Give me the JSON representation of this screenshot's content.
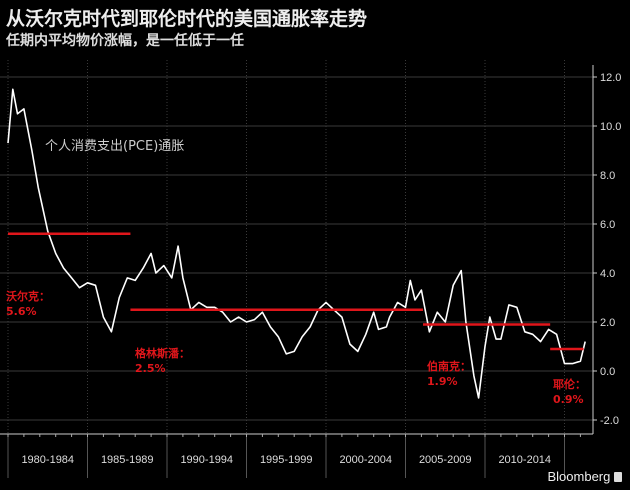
{
  "title": "从沃尔克时代到耶伦时代的美国通胀率走势",
  "subtitle": "任期内平均物价涨幅，是一任低于一任",
  "brand": "Bloomberg",
  "chart_data": {
    "type": "line",
    "title": "从沃尔克时代到耶伦时代的美国通胀率走势",
    "subtitle": "任期内平均物价涨幅，是一任低于一任",
    "series_label": "个人消费支出(PCE)通胀",
    "ylim": [
      -2,
      12
    ],
    "xlim": [
      1980,
      2017
    ],
    "yticks": [
      "12.0",
      "10.0",
      "8.0",
      "6.0",
      "4.0",
      "2.0",
      "0.0",
      "-2.0"
    ],
    "ytick_values": [
      12,
      10,
      8,
      6,
      4,
      2,
      0,
      -2
    ],
    "xtick_labels": [
      "1980-1984",
      "1985-1989",
      "1990-1994",
      "1995-1999",
      "2000-2004",
      "2005-2009",
      "2010-2014"
    ],
    "grid": true,
    "colors": {
      "line": "#ffffff",
      "average": "#e0161b",
      "label": "#e0161b",
      "grid": "#3a3a3a"
    },
    "series": [
      {
        "x": [
          1980.0,
          1980.3,
          1980.6,
          1981.0,
          1981.5,
          1981.9,
          1982.5,
          1983.0,
          1983.5,
          1984.0,
          1984.5,
          1985.0,
          1985.5,
          1986.0,
          1986.5,
          1987.0,
          1987.5,
          1988.0,
          1988.5,
          1989.0,
          1989.3,
          1989.8,
          1990.3,
          1990.7,
          1991.0,
          1991.5,
          1992.0,
          1992.5,
          1993.0,
          1993.5,
          1994.0,
          1994.5,
          1995.0,
          1995.5,
          1996.0,
          1996.5,
          1997.0,
          1997.5,
          1998.0,
          1998.5,
          1999.0,
          1999.5,
          2000.0,
          2000.5,
          2001.0,
          2001.5,
          2002.0,
          2002.5,
          2003.0,
          2003.3,
          2003.8,
          2004.0,
          2004.5,
          2005.0,
          2005.3,
          2005.6,
          2006.0,
          2006.5,
          2007.0,
          2007.5,
          2008.0,
          2008.5,
          2008.8,
          2009.3,
          2009.6,
          2010.0,
          2010.3,
          2010.7,
          2011.0,
          2011.5,
          2012.0,
          2012.5,
          2013.0,
          2013.5,
          2014.0,
          2014.5,
          2015.0,
          2015.5,
          2016.0,
          2016.3
        ],
        "y": [
          9.3,
          11.5,
          10.5,
          10.7,
          9.0,
          7.5,
          5.7,
          4.8,
          4.2,
          3.8,
          3.4,
          3.6,
          3.5,
          2.2,
          1.6,
          3.0,
          3.8,
          3.7,
          4.2,
          4.8,
          4.0,
          4.3,
          3.8,
          5.1,
          3.8,
          2.5,
          2.8,
          2.6,
          2.6,
          2.4,
          2.0,
          2.2,
          2.0,
          2.1,
          2.4,
          1.8,
          1.4,
          0.7,
          0.8,
          1.4,
          1.8,
          2.5,
          2.8,
          2.5,
          2.2,
          1.1,
          0.8,
          1.5,
          2.4,
          1.7,
          1.8,
          2.2,
          2.8,
          2.6,
          3.7,
          2.9,
          3.3,
          1.6,
          2.4,
          2.0,
          3.5,
          4.1,
          2.0,
          -0.2,
          -1.1,
          1.0,
          2.2,
          1.3,
          1.3,
          2.7,
          2.6,
          1.6,
          1.5,
          1.2,
          1.7,
          1.5,
          0.3,
          0.3,
          0.4,
          1.2
        ]
      }
    ],
    "averages": [
      {
        "name": "沃尔克：",
        "value": 5.6,
        "value_label": "5.6%",
        "start": 1980.0,
        "end": 1987.7
      },
      {
        "name": "格林斯潘：",
        "value": 2.5,
        "value_label": "2.5%",
        "start": 1987.7,
        "end": 2006.1
      },
      {
        "name": "伯南克：",
        "value": 1.9,
        "value_label": "1.9%",
        "start": 2006.1,
        "end": 2014.1
      },
      {
        "name": "耶伦：",
        "value": 0.9,
        "value_label": "0.9%",
        "start": 2014.1,
        "end": 2016.2
      }
    ]
  }
}
